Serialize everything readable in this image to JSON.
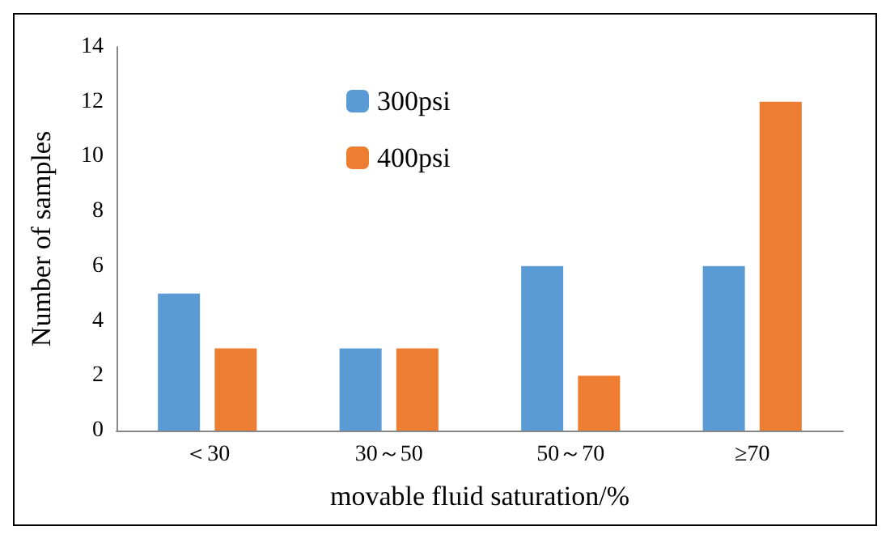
{
  "chart_data": {
    "type": "bar",
    "xlabel": "movable fluid saturation/%",
    "ylabel": "Number of samples",
    "categories": [
      "＜30",
      "30～50",
      "50～70",
      "≥70"
    ],
    "series": [
      {
        "name": "300psi",
        "color": "#5b9bd5",
        "values": [
          5,
          3,
          6,
          6
        ]
      },
      {
        "name": "400psi",
        "color": "#ed7d31",
        "values": [
          3,
          3,
          2,
          12
        ]
      }
    ],
    "ylim": [
      0,
      14
    ],
    "yticks": [
      0,
      2,
      4,
      6,
      8,
      10,
      12,
      14
    ],
    "grid": false,
    "legend": "top left"
  }
}
